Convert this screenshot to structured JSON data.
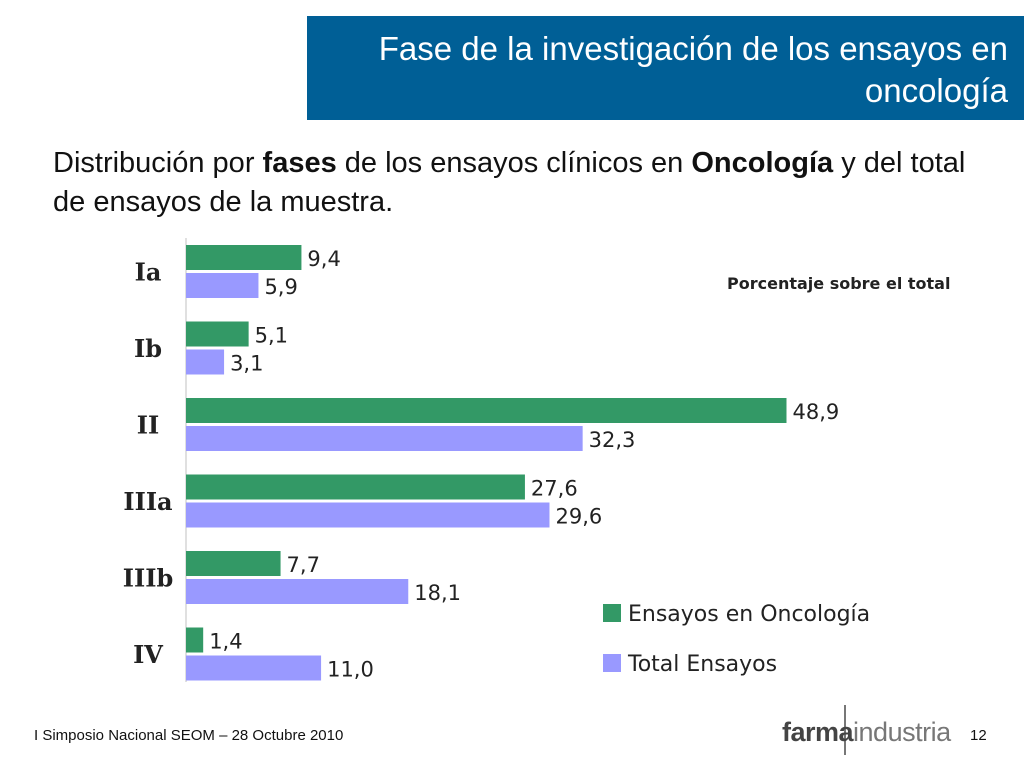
{
  "slide": {
    "title": "Fase de la investigación de los ensayos en oncología",
    "subtitle_parts": [
      {
        "text": "Distribución por ",
        "bold": false
      },
      {
        "text": "fases",
        "bold": true
      },
      {
        "text": " de los ensayos clínicos en ",
        "bold": false
      },
      {
        "text": "Oncología",
        "bold": true
      },
      {
        "text": " y del total de ensayos de la muestra.",
        "bold": false
      }
    ],
    "footer": "I Simposio Nacional SEOM – 28 Octubre 2010",
    "logo_bold": "farma",
    "logo_light": "industria",
    "page_number": "12"
  },
  "chart_data": {
    "type": "bar",
    "orientation": "horizontal",
    "annotation": "Porcentaje sobre el total",
    "categories": [
      "Ia",
      "Ib",
      "II",
      "IIIa",
      "IIIb",
      "IV"
    ],
    "series": [
      {
        "name": "Ensayos en Oncología",
        "color": "#339966",
        "values": [
          9.4,
          5.1,
          48.9,
          27.6,
          7.7,
          1.4
        ],
        "labels": [
          "9,4",
          "5,1",
          "48,9",
          "27,6",
          "7,7",
          "1,4"
        ]
      },
      {
        "name": "Total Ensayos",
        "color": "#9999ff",
        "values": [
          5.9,
          3.1,
          32.3,
          29.6,
          18.1,
          11.0
        ],
        "labels": [
          "5,9",
          "3,1",
          "32,3",
          "29,6",
          "18,1",
          "11,0"
        ]
      }
    ],
    "legend_position": "bottom-right",
    "grid": false
  }
}
